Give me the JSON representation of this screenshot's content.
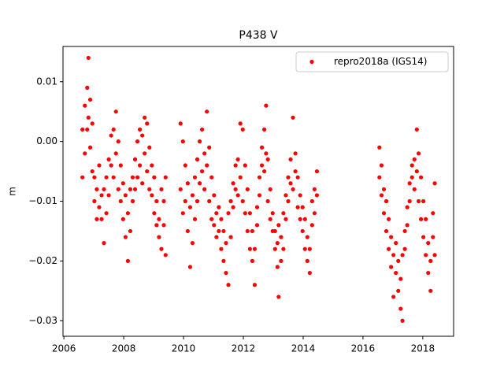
{
  "chart_data": {
    "type": "scatter",
    "title": "P438 V",
    "y_label": "m",
    "xlim": [
      2005.97,
      2019.03
    ],
    "ylim": [
      -0.0326,
      0.0159
    ],
    "xticks": [
      2006,
      2008,
      2010,
      2012,
      2014,
      2016,
      2018
    ],
    "yticks": [
      {
        "value": -0.03,
        "label": "−0.03"
      },
      {
        "value": -0.02,
        "label": "−0.02"
      },
      {
        "value": -0.01,
        "label": "−0.01"
      },
      {
        "value": 0,
        "label": "0.00"
      },
      0.01
    ],
    "legend": "upper right",
    "series": [
      {
        "name": "repro2018a (IGS14)",
        "color": "#ff0000",
        "x": [
          2006.62,
          2006.62,
          2006.7,
          2006.7,
          2006.78,
          2006.78,
          2006.82,
          2006.82,
          2006.88,
          2006.88,
          2006.95,
          2006.95,
          2007.02,
          2007.02,
          2007.1,
          2007.1,
          2007.18,
          2007.18,
          2007.26,
          2007.26,
          2007.34,
          2007.34,
          2007.42,
          2007.42,
          2007.5,
          2007.5,
          2007.58,
          2007.58,
          2007.66,
          2007.66,
          2007.74,
          2007.74,
          2007.82,
          2007.82,
          2007.9,
          2007.9,
          2007.98,
          2007.98,
          2008.06,
          2008.06,
          2008.14,
          2008.14,
          2008.22,
          2008.22,
          2008.3,
          2008.3,
          2008.38,
          2008.38,
          2008.46,
          2008.46,
          2008.54,
          2008.54,
          2008.62,
          2008.62,
          2008.7,
          2008.7,
          2008.78,
          2008.78,
          2008.86,
          2008.86,
          2008.94,
          2008.94,
          2009.02,
          2009.02,
          2009.1,
          2009.1,
          2009.18,
          2009.18,
          2009.26,
          2009.26,
          2009.34,
          2009.34,
          2009.4,
          2009.4,
          2009.9,
          2009.9,
          2009.98,
          2009.98,
          2010.06,
          2010.06,
          2010.14,
          2010.14,
          2010.22,
          2010.22,
          2010.3,
          2010.3,
          2010.38,
          2010.38,
          2010.46,
          2010.46,
          2010.54,
          2010.54,
          2010.62,
          2010.62,
          2010.7,
          2010.7,
          2010.78,
          2010.78,
          2010.86,
          2010.86,
          2010.94,
          2010.94,
          2011.02,
          2011.02,
          2011.1,
          2011.1,
          2011.18,
          2011.18,
          2011.26,
          2011.26,
          2011.34,
          2011.34,
          2011.42,
          2011.42,
          2011.5,
          2011.5,
          2011.58,
          2011.58,
          2011.66,
          2011.66,
          2011.74,
          2011.74,
          2011.82,
          2011.82,
          2011.9,
          2011.9,
          2011.98,
          2011.98,
          2012.06,
          2012.06,
          2012.14,
          2012.14,
          2012.22,
          2012.22,
          2012.3,
          2012.3,
          2012.38,
          2012.38,
          2012.46,
          2012.46,
          2012.54,
          2012.54,
          2012.62,
          2012.62,
          2012.7,
          2012.7,
          2012.76,
          2012.76,
          2012.82,
          2012.82,
          2012.9,
          2012.9,
          2012.98,
          2012.98,
          2013.06,
          2013.06,
          2013.14,
          2013.14,
          2013.18,
          2013.18,
          2013.26,
          2013.26,
          2013.34,
          2013.34,
          2013.42,
          2013.42,
          2013.5,
          2013.5,
          2013.58,
          2013.58,
          2013.66,
          2013.66,
          2013.74,
          2013.74,
          2013.82,
          2013.82,
          2013.9,
          2013.9,
          2013.98,
          2013.98,
          2014.06,
          2014.06,
          2014.14,
          2014.14,
          2014.22,
          2014.22,
          2014.3,
          2014.3,
          2014.38,
          2014.38,
          2014.46,
          2014.46,
          2016.55,
          2016.55,
          2016.62,
          2016.62,
          2016.7,
          2016.7,
          2016.78,
          2016.78,
          2016.86,
          2016.86,
          2016.94,
          2016.94,
          2017.02,
          2017.02,
          2017.1,
          2017.1,
          2017.18,
          2017.18,
          2017.26,
          2017.26,
          2017.32,
          2017.32,
          2017.4,
          2017.4,
          2017.48,
          2017.48,
          2017.56,
          2017.56,
          2017.64,
          2017.64,
          2017.72,
          2017.72,
          2017.8,
          2017.8,
          2017.86,
          2017.86,
          2017.94,
          2017.94,
          2018.02,
          2018.02,
          2018.1,
          2018.1,
          2018.18,
          2018.18,
          2018.26,
          2018.26,
          2018.34,
          2018.34,
          2018.4,
          2018.4
        ],
        "y": [
          0.002,
          -0.006,
          0.006,
          -0.002,
          0.009,
          0.002,
          0.014,
          0.004,
          0.007,
          -0.001,
          0.003,
          -0.005,
          -0.006,
          -0.01,
          -0.008,
          -0.013,
          -0.011,
          -0.004,
          -0.013,
          -0.009,
          -0.017,
          -0.008,
          -0.012,
          -0.006,
          -0.009,
          -0.003,
          -0.004,
          0.001,
          0.002,
          -0.006,
          0.005,
          -0.002,
          0.0,
          -0.008,
          -0.004,
          -0.01,
          -0.007,
          -0.013,
          -0.009,
          -0.016,
          -0.012,
          -0.02,
          -0.015,
          -0.008,
          -0.01,
          -0.006,
          -0.008,
          -0.003,
          -0.006,
          0.0,
          -0.004,
          0.002,
          0.001,
          -0.007,
          0.004,
          -0.002,
          0.003,
          -0.005,
          -0.001,
          -0.008,
          -0.004,
          -0.009,
          -0.006,
          -0.012,
          -0.01,
          -0.014,
          -0.013,
          -0.016,
          -0.018,
          -0.008,
          -0.014,
          -0.01,
          -0.019,
          -0.006,
          0.003,
          -0.008,
          0.0,
          -0.012,
          -0.004,
          -0.01,
          -0.007,
          -0.015,
          -0.011,
          -0.021,
          -0.009,
          -0.017,
          -0.013,
          -0.006,
          -0.01,
          -0.003,
          -0.007,
          0.0,
          -0.005,
          0.002,
          -0.002,
          -0.008,
          0.005,
          -0.004,
          -0.001,
          -0.01,
          -0.006,
          -0.013,
          -0.009,
          -0.014,
          -0.012,
          -0.016,
          -0.015,
          -0.011,
          -0.018,
          -0.013,
          -0.02,
          -0.015,
          -0.022,
          -0.017,
          -0.024,
          -0.012,
          -0.016,
          -0.01,
          -0.011,
          -0.007,
          -0.008,
          -0.004,
          -0.003,
          -0.009,
          0.003,
          -0.006,
          0.002,
          -0.01,
          -0.004,
          -0.012,
          -0.008,
          -0.015,
          -0.012,
          -0.018,
          -0.015,
          -0.02,
          -0.018,
          -0.024,
          -0.014,
          -0.011,
          -0.009,
          -0.006,
          -0.004,
          -0.001,
          0.002,
          -0.005,
          0.006,
          -0.002,
          -0.003,
          -0.01,
          -0.008,
          -0.013,
          -0.012,
          -0.015,
          -0.015,
          -0.018,
          -0.017,
          -0.021,
          -0.026,
          -0.014,
          -0.02,
          -0.016,
          -0.018,
          -0.012,
          -0.013,
          -0.009,
          -0.01,
          -0.006,
          -0.007,
          -0.003,
          0.004,
          -0.008,
          -0.002,
          -0.005,
          -0.006,
          -0.011,
          -0.009,
          -0.013,
          -0.011,
          -0.015,
          -0.013,
          -0.018,
          -0.016,
          -0.02,
          -0.018,
          -0.022,
          -0.014,
          -0.01,
          -0.012,
          -0.008,
          -0.009,
          -0.005,
          -0.001,
          -0.006,
          -0.004,
          -0.009,
          -0.008,
          -0.012,
          -0.01,
          -0.015,
          -0.013,
          -0.018,
          -0.016,
          -0.021,
          -0.019,
          -0.026,
          -0.017,
          -0.022,
          -0.02,
          -0.025,
          -0.023,
          -0.028,
          -0.03,
          -0.019,
          -0.018,
          -0.015,
          -0.014,
          -0.011,
          -0.01,
          -0.007,
          -0.006,
          -0.004,
          -0.003,
          -0.008,
          0.002,
          -0.005,
          -0.002,
          -0.01,
          -0.006,
          -0.013,
          -0.01,
          -0.016,
          -0.013,
          -0.019,
          -0.017,
          -0.022,
          -0.02,
          -0.025,
          -0.016,
          -0.012,
          -0.007,
          -0.019
        ]
      }
    ]
  }
}
